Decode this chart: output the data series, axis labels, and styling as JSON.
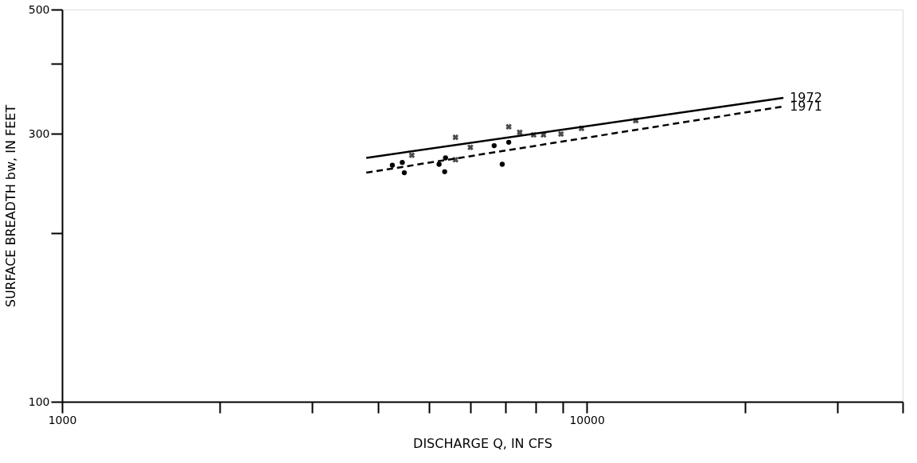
{
  "chart_data": {
    "type": "scatter",
    "xlabel": "DISCHARGE Q, IN CFS",
    "ylabel": "SURFACE BREADTH bw, IN FEET",
    "log": "xy",
    "grid": false,
    "legend": false,
    "xlim": [
      1000,
      40000
    ],
    "ylim": [
      100,
      500
    ],
    "xticks": [
      1000,
      {
        "value": 2000,
        "label": null
      },
      {
        "value": 3000,
        "label": null
      },
      {
        "value": 4000,
        "label": null
      },
      {
        "value": 5000,
        "label": null
      },
      {
        "value": 6000,
        "label": null
      },
      {
        "value": 7000,
        "label": null
      },
      {
        "value": 8000,
        "label": null
      },
      {
        "value": 9000,
        "label": null
      },
      10000,
      {
        "value": 20000,
        "label": null
      },
      {
        "value": 30000,
        "label": null
      },
      {
        "value": 40000,
        "label": null
      }
    ],
    "yticks": [
      100,
      {
        "value": 200,
        "label": null
      },
      300,
      {
        "value": 400,
        "label": null
      },
      500
    ],
    "series": [
      {
        "type": "scatter",
        "marker": "cross",
        "color": "#000000",
        "x": [
          4640,
          5620,
          6000,
          7100,
          7450,
          7920,
          8270,
          8930,
          9770,
          12400,
          5620
        ],
        "values": [
          275,
          296,
          284,
          309,
          302,
          299,
          299,
          300,
          307,
          317,
          270
        ]
      },
      {
        "type": "scatter",
        "marker": "circle",
        "color": "#000000",
        "x": [
          4260,
          4450,
          4490,
          5230,
          5380,
          5360,
          6660,
          7100,
          6900
        ],
        "values": [
          264,
          267,
          256,
          265,
          272,
          257,
          286,
          290,
          265
        ]
      },
      {
        "type": "line",
        "name": "1972",
        "line_style": "solid",
        "color": "#000000",
        "x": [
          3800,
          23700
        ],
        "values": [
          272,
          348
        ]
      },
      {
        "type": "line",
        "name": "1971",
        "line_style": "dashed",
        "color": "#000000",
        "x": [
          3800,
          23700
        ],
        "values": [
          256,
          336
        ]
      }
    ]
  }
}
